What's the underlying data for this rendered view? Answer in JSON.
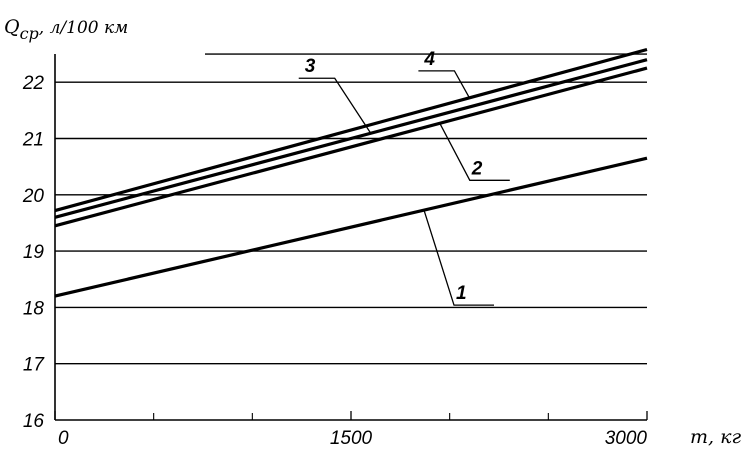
{
  "chart_data": {
    "type": "line",
    "title": "",
    "ylabel": {
      "symbol": "Q",
      "subscript": "ср",
      "unit": ", л/100 км"
    },
    "xlabel": "т, кг",
    "xlim": [
      0,
      3000
    ],
    "ylim": [
      16,
      22.5
    ],
    "x_ticks": [
      {
        "value": 0,
        "label": "0"
      },
      {
        "value": 1500,
        "label": "1500"
      },
      {
        "value": 3000,
        "label": "3000"
      }
    ],
    "x_minor_ticks": [
      500,
      1000,
      2000,
      2500
    ],
    "y_ticks": [
      {
        "value": 16,
        "label": "16"
      },
      {
        "value": 17,
        "label": "17"
      },
      {
        "value": 18,
        "label": "18"
      },
      {
        "value": 19,
        "label": "19"
      },
      {
        "value": 20,
        "label": "20"
      },
      {
        "value": 21,
        "label": "21"
      },
      {
        "value": 22,
        "label": "22"
      }
    ],
    "grid": "horizontal",
    "series": [
      {
        "name": "1",
        "x": [
          0,
          3000
        ],
        "y": [
          18.2,
          20.65
        ]
      },
      {
        "name": "2",
        "x": [
          0,
          3000
        ],
        "y": [
          19.45,
          22.25
        ]
      },
      {
        "name": "3",
        "x": [
          0,
          3000
        ],
        "y": [
          19.6,
          22.4
        ]
      },
      {
        "name": "4",
        "x": [
          0,
          3000
        ],
        "y": [
          19.72,
          22.58
        ]
      }
    ],
    "series_labels": [
      {
        "series": "1",
        "text": "1",
        "at_x": 1870,
        "side": "below"
      },
      {
        "series": "2",
        "text": "2",
        "at_x": 1950,
        "side": "below"
      },
      {
        "series": "3",
        "text": "3",
        "at_x": 1600,
        "side": "above"
      },
      {
        "series": "4",
        "text": "4",
        "at_x": 2100,
        "side": "above"
      }
    ]
  }
}
